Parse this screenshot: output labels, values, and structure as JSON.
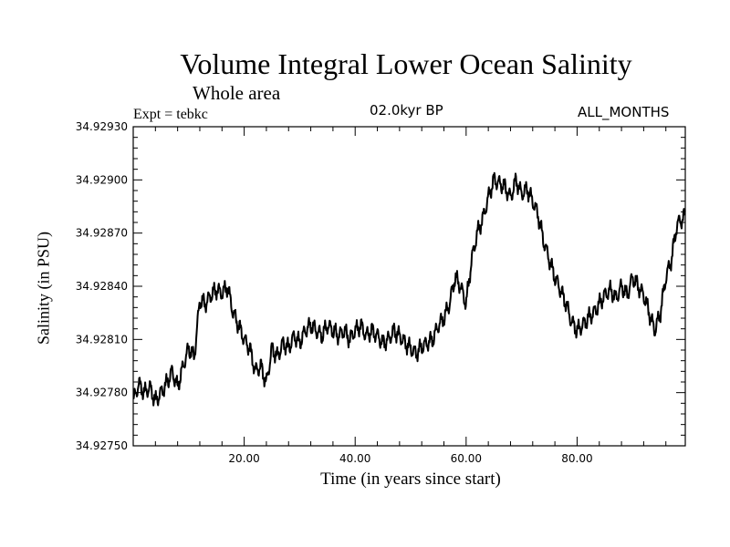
{
  "header": {
    "title": "Volume Integral Lower Ocean Salinity",
    "subtitle": "Whole area",
    "expt": "Expt = tebkc",
    "period": "02.0kyr BP",
    "months": "ALL_MONTHS"
  },
  "chart_data": {
    "type": "line",
    "title": "Volume Integral Lower Ocean Salinity",
    "subtitle": "Whole area",
    "xlabel": "Time (in years since start)",
    "ylabel": "Salinity (in PSU)",
    "xlim": [
      0,
      99.5
    ],
    "ylim": [
      34.9275,
      34.9293
    ],
    "x_ticks": [
      20,
      40,
      60,
      80
    ],
    "x_tick_labels": [
      "20.00",
      "40.00",
      "60.00",
      "80.00"
    ],
    "y_ticks": [
      34.9275,
      34.9278,
      34.9281,
      34.9284,
      34.9287,
      34.929,
      34.9293
    ],
    "y_tick_labels": [
      "34.92750",
      "34.92780",
      "34.92810",
      "34.92840",
      "34.92870",
      "34.92900",
      "34.92930"
    ],
    "series": [
      {
        "name": "Salinity",
        "color": "#000000",
        "x": [
          0,
          1,
          2,
          3,
          4,
          5,
          6,
          7,
          8,
          9,
          10,
          11,
          12,
          13,
          14,
          15,
          16,
          17,
          18,
          19,
          20,
          21,
          22,
          23,
          24,
          25,
          26,
          27,
          28,
          29,
          30,
          31,
          32,
          33,
          34,
          35,
          36,
          37,
          38,
          39,
          40,
          41,
          42,
          43,
          44,
          45,
          46,
          47,
          48,
          49,
          50,
          51,
          52,
          53,
          54,
          55,
          56,
          57,
          58,
          59,
          60,
          61,
          62,
          63,
          64,
          65,
          66,
          67,
          68,
          69,
          70,
          71,
          72,
          73,
          74,
          75,
          76,
          77,
          78,
          79,
          80,
          81,
          82,
          83,
          84,
          85,
          86,
          87,
          88,
          89,
          90,
          91,
          92,
          93,
          94,
          95,
          96,
          97,
          98,
          99,
          99.5
        ],
        "values": [
          34.92775,
          34.92785,
          34.9278,
          34.92783,
          34.92775,
          34.9278,
          34.92785,
          34.92792,
          34.92783,
          34.92795,
          34.92805,
          34.928,
          34.92832,
          34.9283,
          34.92835,
          34.92838,
          34.92836,
          34.9284,
          34.92825,
          34.92818,
          34.9281,
          34.92805,
          34.92792,
          34.92795,
          34.92785,
          34.92805,
          34.928,
          34.92808,
          34.92805,
          34.92812,
          34.92808,
          34.92815,
          34.92818,
          34.92815,
          34.92812,
          34.92818,
          34.92815,
          34.92812,
          34.92815,
          34.9281,
          34.92815,
          34.92818,
          34.92812,
          34.92815,
          34.92812,
          34.92808,
          34.9281,
          34.92815,
          34.92812,
          34.92808,
          34.92805,
          34.92802,
          34.92806,
          34.92808,
          34.9281,
          34.92818,
          34.92822,
          34.9283,
          34.92845,
          34.9284,
          34.9283,
          34.92855,
          34.9287,
          34.92878,
          34.9289,
          34.929,
          34.92898,
          34.92896,
          34.9289,
          34.929,
          34.92892,
          34.92895,
          34.92888,
          34.9288,
          34.92865,
          34.92855,
          34.92845,
          34.92838,
          34.9283,
          34.9282,
          34.92815,
          34.92818,
          34.92822,
          34.92825,
          34.9283,
          34.92835,
          34.92838,
          34.92833,
          34.9284,
          34.92835,
          34.92845,
          34.9284,
          34.92835,
          34.92825,
          34.92815,
          34.92825,
          34.92845,
          34.92855,
          34.92875,
          34.92878,
          34.9288
        ]
      }
    ]
  }
}
